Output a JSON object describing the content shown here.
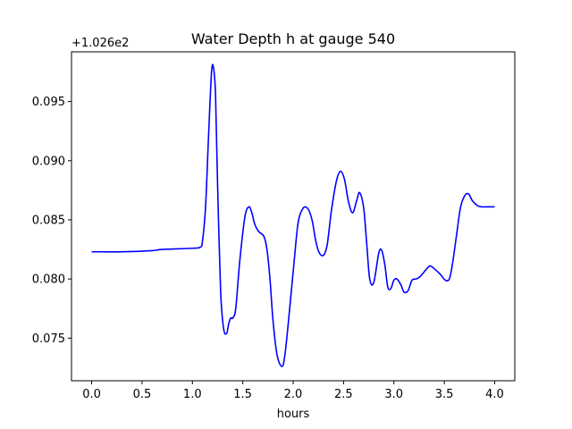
{
  "chart_data": {
    "type": "line",
    "title": "Water Depth h at gauge 540",
    "xlabel": "hours",
    "ylabel": "",
    "y_offset_label": "+1.026e2",
    "xlim": [
      -0.2,
      4.2
    ],
    "ylim": [
      0.0714,
      0.0992
    ],
    "xticks": [
      0.0,
      0.5,
      1.0,
      1.5,
      2.0,
      2.5,
      3.0,
      3.5,
      4.0
    ],
    "xtick_labels": [
      "0.0",
      "0.5",
      "1.0",
      "1.5",
      "2.0",
      "2.5",
      "3.0",
      "3.5",
      "4.0"
    ],
    "yticks": [
      0.075,
      0.08,
      0.085,
      0.09,
      0.095
    ],
    "ytick_labels": [
      "0.075",
      "0.080",
      "0.085",
      "0.090",
      "0.095"
    ],
    "grid": false,
    "legend": "none",
    "series": [
      {
        "color": "#0000ff",
        "x": [
          0.0,
          0.3,
          0.6,
          0.7,
          1.0,
          1.08,
          1.1,
          1.13,
          1.16,
          1.19,
          1.21,
          1.23,
          1.25,
          1.28,
          1.31,
          1.34,
          1.36,
          1.38,
          1.4,
          1.43,
          1.47,
          1.52,
          1.56,
          1.59,
          1.62,
          1.66,
          1.71,
          1.74,
          1.77,
          1.8,
          1.84,
          1.89,
          1.92,
          1.96,
          2.01,
          2.05,
          2.1,
          2.15,
          2.19,
          2.22,
          2.25,
          2.28,
          2.31,
          2.34,
          2.38,
          2.43,
          2.47,
          2.51,
          2.55,
          2.59,
          2.63,
          2.66,
          2.7,
          2.73,
          2.76,
          2.8,
          2.85,
          2.88,
          2.91,
          2.94,
          2.97,
          3.0,
          3.03,
          3.07,
          3.1,
          3.14,
          3.18,
          3.22,
          3.26,
          3.32,
          3.36,
          3.41,
          3.46,
          3.51,
          3.55,
          3.58,
          3.62,
          3.66,
          3.7,
          3.74,
          3.78,
          3.83,
          3.87,
          3.91,
          3.95,
          4.0
        ],
        "values": [
          0.0823,
          0.0823,
          0.0824,
          0.0825,
          0.0826,
          0.0827,
          0.0832,
          0.086,
          0.092,
          0.0975,
          0.0978,
          0.0955,
          0.088,
          0.079,
          0.0758,
          0.0754,
          0.0762,
          0.0767,
          0.0767,
          0.0775,
          0.0815,
          0.0852,
          0.0861,
          0.0856,
          0.0846,
          0.084,
          0.0836,
          0.0825,
          0.08,
          0.0765,
          0.0736,
          0.0726,
          0.0737,
          0.077,
          0.0815,
          0.0848,
          0.086,
          0.0859,
          0.0849,
          0.0834,
          0.0824,
          0.082,
          0.0821,
          0.083,
          0.0858,
          0.0883,
          0.0891,
          0.0884,
          0.0865,
          0.0856,
          0.0866,
          0.0873,
          0.086,
          0.083,
          0.08,
          0.0797,
          0.0822,
          0.0824,
          0.0812,
          0.0793,
          0.0792,
          0.0799,
          0.08,
          0.0795,
          0.0789,
          0.079,
          0.0799,
          0.08,
          0.0802,
          0.0808,
          0.0811,
          0.0808,
          0.0804,
          0.0799,
          0.08,
          0.0812,
          0.0836,
          0.086,
          0.087,
          0.0872,
          0.0866,
          0.0862,
          0.0861,
          0.0861,
          0.0861,
          0.0861
        ]
      }
    ]
  }
}
